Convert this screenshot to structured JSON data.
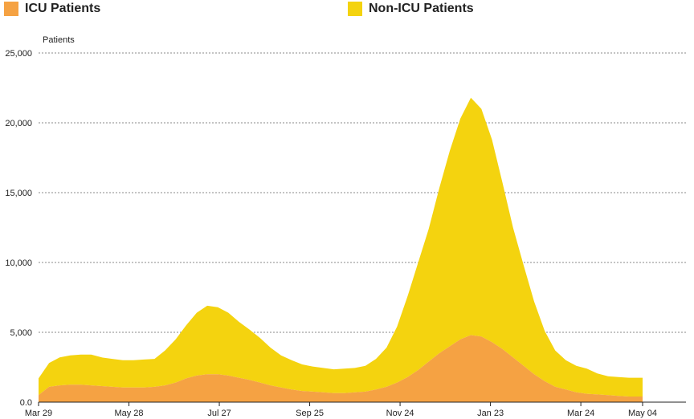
{
  "colors": {
    "icu": "#F5A243",
    "non_icu": "#F4D30F",
    "grid": "#888888",
    "axis": "#222222",
    "text": "#222222"
  },
  "chart_data": {
    "type": "area",
    "stacked": true,
    "title": "",
    "xlabel": "",
    "ylabel": "Patients",
    "ylim": [
      0,
      25000
    ],
    "yticks": [
      0,
      5000,
      10000,
      15000,
      20000,
      25000
    ],
    "ytick_labels": [
      "0.0",
      "5,000",
      "10,000",
      "15,000",
      "20,000",
      "25,000"
    ],
    "xlim": [
      "2020-03-29",
      "2021-05-04"
    ],
    "xticks": [
      "2020-03-29",
      "2020-05-28",
      "2020-07-27",
      "2020-09-25",
      "2020-11-24",
      "2021-01-23",
      "2021-03-24",
      "2021-05-04"
    ],
    "xtick_labels": [
      "Mar 29",
      "May 28",
      "Jul 27",
      "Sep 25",
      "Nov 24",
      "Jan 23",
      "Mar 24",
      "May 04"
    ],
    "grid": true,
    "legend_position": "top",
    "x": [
      "2020-03-29",
      "2020-04-05",
      "2020-04-12",
      "2020-04-19",
      "2020-04-26",
      "2020-05-03",
      "2020-05-10",
      "2020-05-17",
      "2020-05-24",
      "2020-05-31",
      "2020-06-07",
      "2020-06-14",
      "2020-06-21",
      "2020-06-28",
      "2020-07-05",
      "2020-07-12",
      "2020-07-19",
      "2020-07-26",
      "2020-08-02",
      "2020-08-09",
      "2020-08-16",
      "2020-08-23",
      "2020-08-30",
      "2020-09-06",
      "2020-09-13",
      "2020-09-20",
      "2020-09-27",
      "2020-10-04",
      "2020-10-11",
      "2020-10-18",
      "2020-10-25",
      "2020-11-01",
      "2020-11-08",
      "2020-11-15",
      "2020-11-22",
      "2020-11-29",
      "2020-12-06",
      "2020-12-13",
      "2020-12-20",
      "2020-12-27",
      "2021-01-03",
      "2021-01-10",
      "2021-01-17",
      "2021-01-24",
      "2021-01-31",
      "2021-02-07",
      "2021-02-14",
      "2021-02-21",
      "2021-02-28",
      "2021-03-07",
      "2021-03-14",
      "2021-03-21",
      "2021-03-28",
      "2021-04-04",
      "2021-04-11",
      "2021-04-18",
      "2021-04-25",
      "2021-05-04"
    ],
    "series": [
      {
        "name": "ICU Patients",
        "color_key": "icu",
        "values": [
          500,
          1100,
          1200,
          1250,
          1250,
          1200,
          1150,
          1100,
          1050,
          1050,
          1050,
          1100,
          1200,
          1400,
          1700,
          1900,
          2000,
          2000,
          1900,
          1750,
          1600,
          1400,
          1200,
          1050,
          900,
          800,
          750,
          700,
          650,
          650,
          700,
          750,
          900,
          1100,
          1400,
          1800,
          2300,
          2900,
          3500,
          4000,
          4500,
          4800,
          4700,
          4300,
          3800,
          3200,
          2600,
          2000,
          1500,
          1100,
          900,
          700,
          600,
          550,
          500,
          450,
          400,
          400
        ]
      },
      {
        "name": "Non-ICU Patients",
        "color_key": "non_icu",
        "values": [
          1200,
          1700,
          2000,
          2100,
          2150,
          2200,
          2050,
          2000,
          1950,
          1950,
          2000,
          2000,
          2500,
          3100,
          3800,
          4500,
          4900,
          4800,
          4500,
          4000,
          3600,
          3200,
          2700,
          2300,
          2100,
          1900,
          1800,
          1750,
          1700,
          1750,
          1750,
          1850,
          2200,
          2800,
          4000,
          5800,
          7700,
          9500,
          11800,
          14000,
          15800,
          17000,
          16300,
          14500,
          11900,
          9300,
          7200,
          5200,
          3600,
          2600,
          2100,
          1900,
          1800,
          1500,
          1350,
          1350,
          1350,
          1350
        ]
      }
    ]
  }
}
